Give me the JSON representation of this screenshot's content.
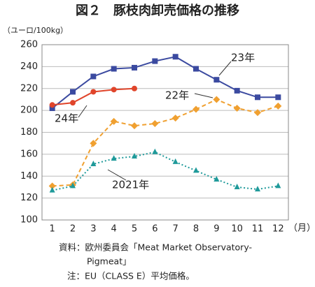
{
  "chart_data": {
    "type": "line",
    "title": "図２　豚枝肉卸売価格の推移",
    "y_label": "（ユーロ/100kg）",
    "x_label": "（月）",
    "categories": [
      "1",
      "2",
      "3",
      "4",
      "5",
      "6",
      "7",
      "8",
      "9",
      "10",
      "11",
      "12"
    ],
    "ylim": [
      100,
      260
    ],
    "yticks": [
      100,
      120,
      140,
      160,
      180,
      200,
      220,
      240,
      260
    ],
    "grid": true,
    "series": [
      {
        "name": "23年",
        "color": "#3b4aa0",
        "marker": "square",
        "dash": "solid",
        "values": [
          202,
          217,
          231,
          238,
          239,
          245,
          249,
          238,
          228,
          218,
          212,
          212
        ]
      },
      {
        "name": "22年",
        "color": "#f0a030",
        "marker": "diamond",
        "dash": "dashed",
        "values": [
          131,
          132,
          170,
          190,
          186,
          188,
          193,
          201,
          210,
          202,
          198,
          204
        ]
      },
      {
        "name": "24年",
        "color": "#e0452b",
        "marker": "circle",
        "dash": "solid",
        "values": [
          205,
          207,
          217,
          219,
          220,
          null,
          null,
          null,
          null,
          null,
          null,
          null
        ]
      },
      {
        "name": "2021年",
        "color": "#1f9a9a",
        "marker": "triangle",
        "dash": "dotted",
        "values": [
          127,
          131,
          151,
          156,
          158,
          162,
          153,
          145,
          137,
          130,
          128,
          131
        ]
      }
    ],
    "notes": [
      "資料：欧州委員会「Meat Market Observatory-",
      "Pigmeat」",
      "注：EU（CLASS E）平均価格。"
    ]
  }
}
